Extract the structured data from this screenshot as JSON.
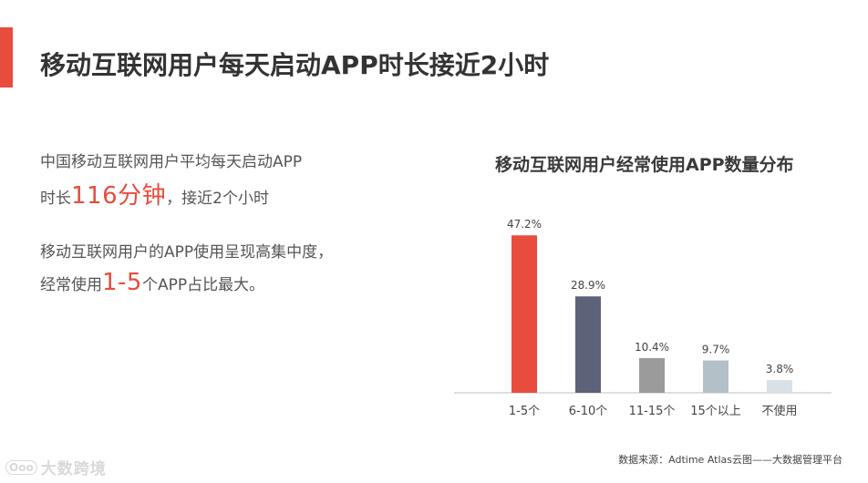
{
  "title": "移动互联网用户每天启动APP时长接近2小时",
  "accent_color": "#e84c3d",
  "left": {
    "line1": "中国移动互联网用户平均每天启动APP",
    "line2_pre": "时长",
    "line2_highlight": "116分钟",
    "line2_post": "，接近2个小时",
    "line3": "移动互联网用户的APP使用呈现高集中度，",
    "line4_pre": "经常使用",
    "line4_highlight": "1-5",
    "line4_post": "个APP占比最大。"
  },
  "chart_data": {
    "type": "bar",
    "title": "移动互联网用户经常使用APP数量分布",
    "categories": [
      "1-5个",
      "6-10个",
      "11-15个",
      "15个以上",
      "不使用"
    ],
    "values": [
      47.2,
      28.9,
      10.4,
      9.7,
      3.8
    ],
    "value_labels": [
      "47.2%",
      "28.9%",
      "10.4%",
      "9.7%",
      "3.8%"
    ],
    "colors": [
      "#e84c3d",
      "#5d6278",
      "#9b9b9b",
      "#b4c0c8",
      "#d9e1e6"
    ],
    "ylim": [
      0,
      50
    ],
    "grid": false
  },
  "source": "数据来源：Adtime Atlas云图——大数据管理平台",
  "watermark": {
    "logo": "Ooo",
    "text": "大数跨境"
  }
}
